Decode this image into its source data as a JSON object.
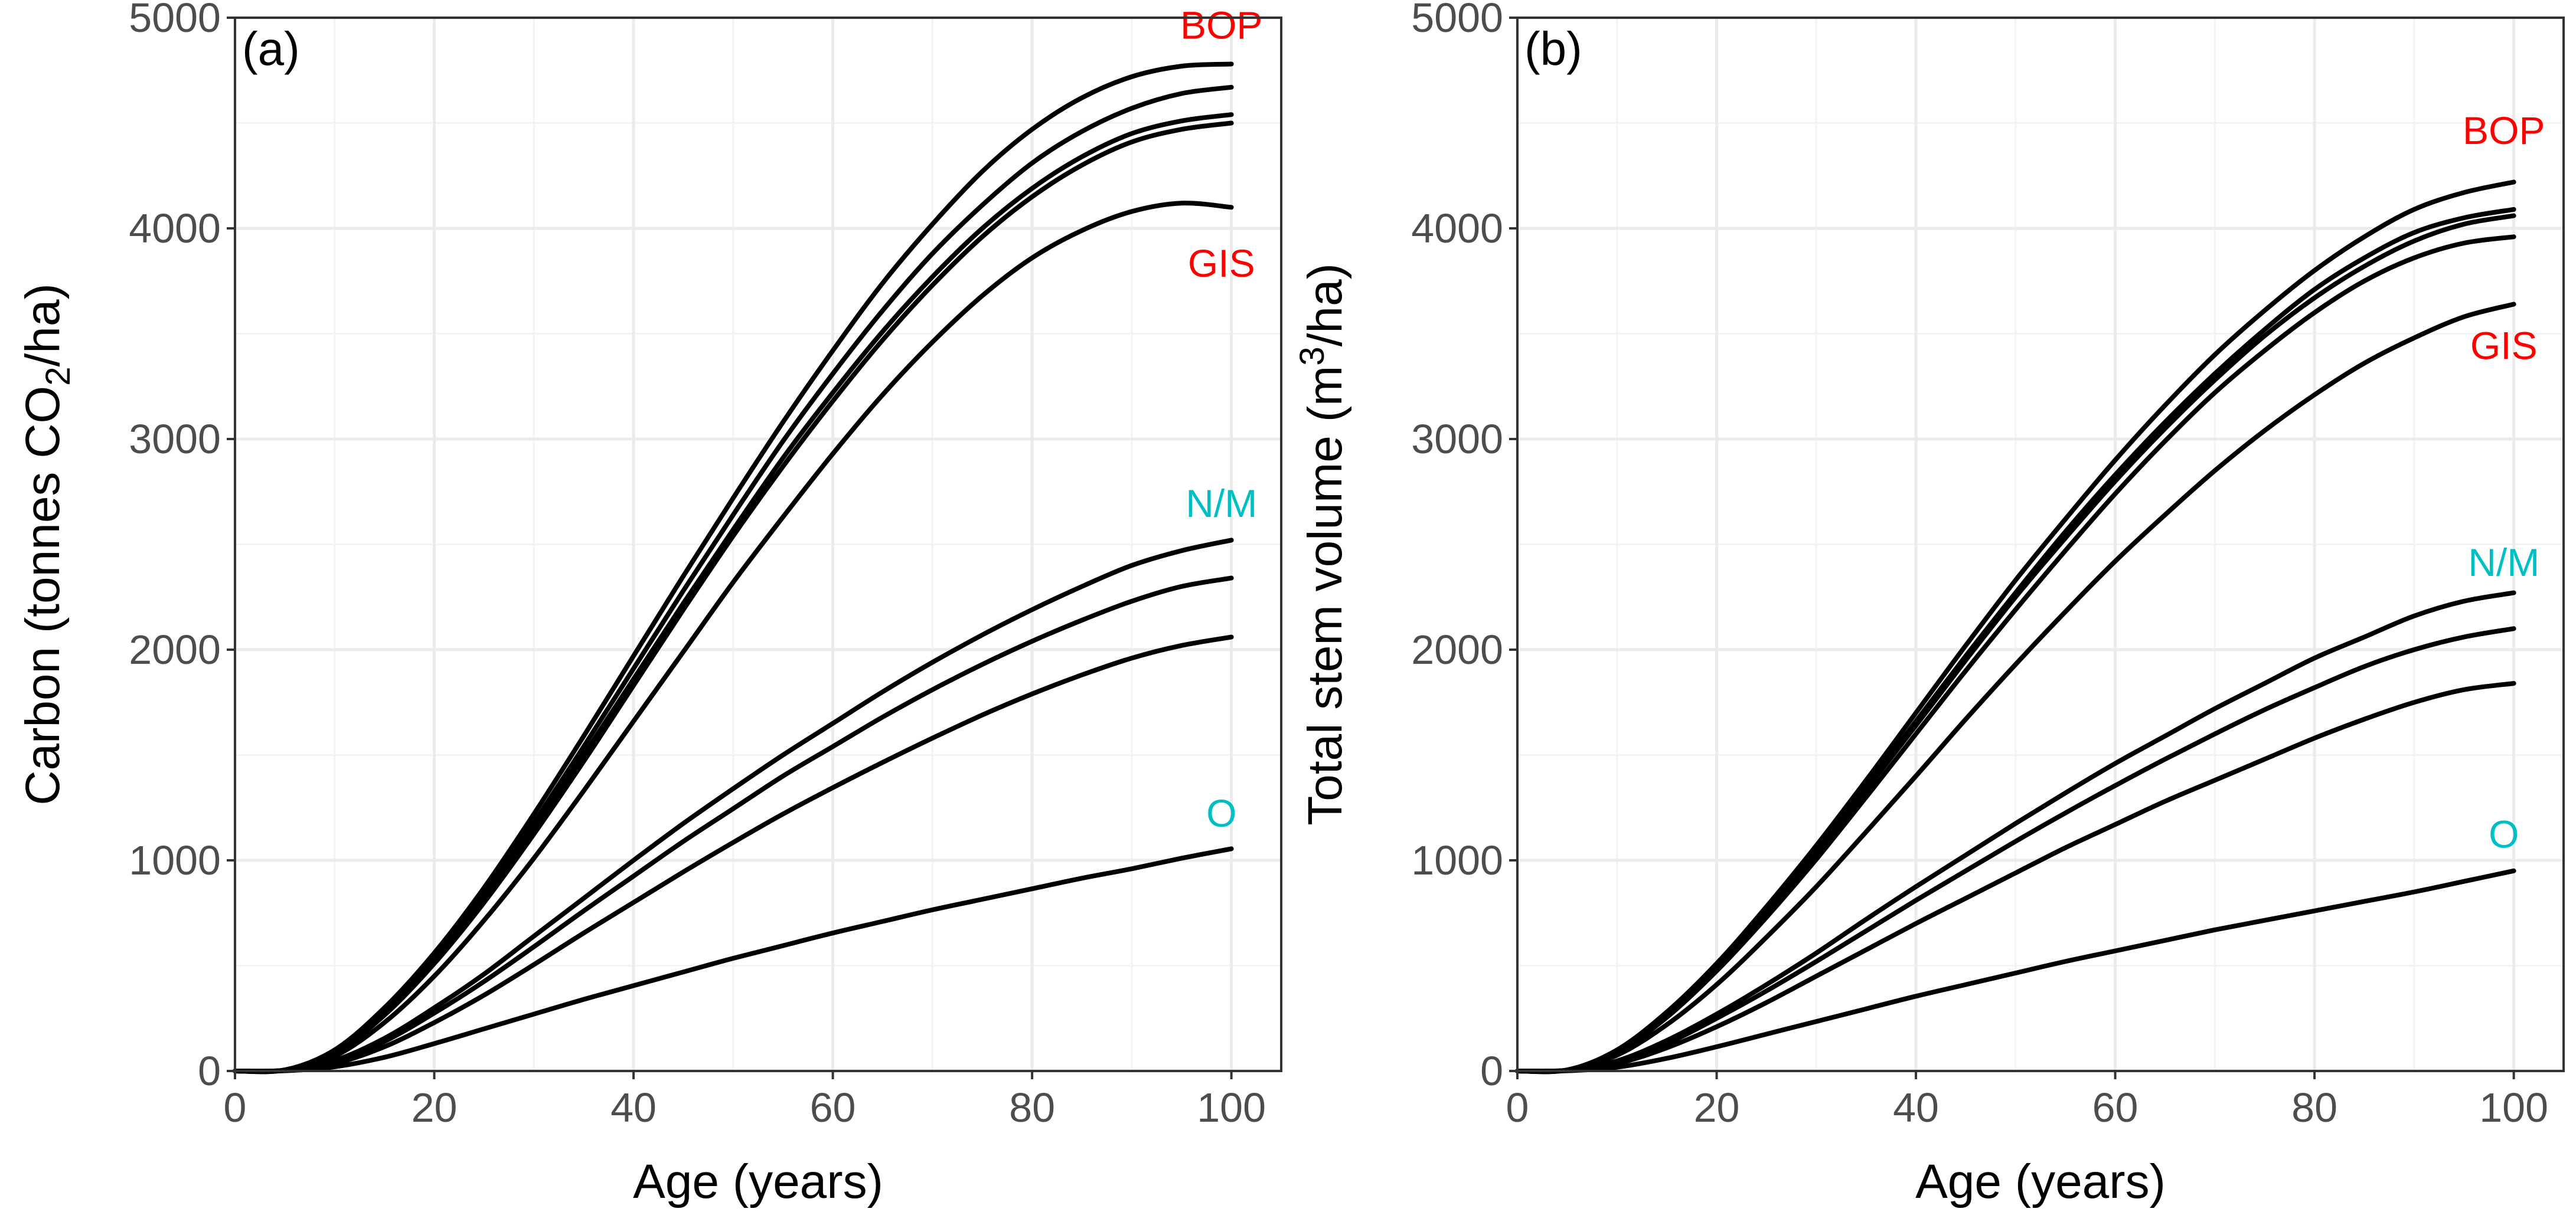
{
  "chart_data": [
    {
      "type": "line",
      "panel_tag": "(a)",
      "title": "",
      "xlabel": "Age (years)",
      "ylabel": {
        "pre": "Carbon (tonnes CO",
        "sub": "2",
        "post": "/ha)"
      },
      "xlim": [
        0,
        105
      ],
      "ylim": [
        0,
        5000
      ],
      "x_ticks": [
        0,
        20,
        40,
        60,
        80,
        100
      ],
      "y_ticks": [
        0,
        1000,
        2000,
        3000,
        4000,
        5000
      ],
      "x_tick_labels": [
        "0",
        "20",
        "40",
        "60",
        "80",
        "100"
      ],
      "y_tick_labels": [
        "0",
        "1000",
        "2000",
        "3000",
        "4000",
        "5000"
      ],
      "grid": true,
      "x": [
        0,
        5,
        10,
        15,
        20,
        25,
        30,
        35,
        40,
        45,
        50,
        55,
        60,
        65,
        70,
        75,
        80,
        85,
        90,
        95,
        100
      ],
      "series": [
        {
          "name": "curve-1",
          "values": [
            0,
            5,
            100,
            300,
            560,
            870,
            1220,
            1590,
            1970,
            2350,
            2720,
            3080,
            3420,
            3740,
            4020,
            4270,
            4470,
            4620,
            4720,
            4770,
            4780
          ]
        },
        {
          "name": "curve-2",
          "values": [
            0,
            5,
            95,
            285,
            540,
            840,
            1180,
            1540,
            1910,
            2280,
            2640,
            2990,
            3310,
            3610,
            3880,
            4110,
            4310,
            4460,
            4570,
            4640,
            4670
          ]
        },
        {
          "name": "curve-3",
          "values": [
            0,
            5,
            90,
            275,
            525,
            820,
            1150,
            1500,
            1860,
            2220,
            2570,
            2910,
            3220,
            3510,
            3770,
            4000,
            4190,
            4340,
            4450,
            4510,
            4540
          ]
        },
        {
          "name": "curve-4",
          "values": [
            0,
            5,
            85,
            265,
            510,
            800,
            1125,
            1470,
            1830,
            2190,
            2540,
            2870,
            3180,
            3470,
            3730,
            3960,
            4150,
            4300,
            4410,
            4470,
            4500
          ]
        },
        {
          "name": "curve-5",
          "values": [
            0,
            4,
            70,
            230,
            450,
            715,
            1010,
            1330,
            1660,
            1990,
            2320,
            2630,
            2930,
            3210,
            3460,
            3680,
            3860,
            3990,
            4080,
            4120,
            4100
          ]
        },
        {
          "name": "curve-6",
          "values": [
            0,
            3,
            50,
            155,
            300,
            460,
            640,
            820,
            1000,
            1175,
            1340,
            1500,
            1650,
            1800,
            1940,
            2070,
            2190,
            2300,
            2400,
            2470,
            2520
          ]
        },
        {
          "name": "curve-7",
          "values": [
            0,
            3,
            45,
            140,
            275,
            425,
            590,
            760,
            925,
            1090,
            1245,
            1400,
            1540,
            1680,
            1810,
            1930,
            2040,
            2140,
            2230,
            2300,
            2340
          ]
        },
        {
          "name": "curve-8",
          "values": [
            0,
            2,
            35,
            115,
            230,
            360,
            505,
            655,
            800,
            945,
            1085,
            1220,
            1345,
            1465,
            1580,
            1690,
            1790,
            1880,
            1960,
            2020,
            2060
          ]
        },
        {
          "name": "curve-9",
          "values": [
            0,
            1,
            20,
            65,
            130,
            200,
            270,
            340,
            405,
            470,
            535,
            595,
            655,
            710,
            765,
            815,
            865,
            915,
            960,
            1010,
            1055
          ]
        }
      ],
      "labels": [
        {
          "text": "BOP",
          "color": "#ff0000",
          "x": 99,
          "y": 4900
        },
        {
          "text": "GIS",
          "color": "#ff0000",
          "x": 99,
          "y": 3770
        },
        {
          "text": "N/M",
          "color": "#00bfc4",
          "x": 99,
          "y": 2630
        },
        {
          "text": "O",
          "color": "#00bfc4",
          "x": 99,
          "y": 1160
        }
      ]
    },
    {
      "type": "line",
      "panel_tag": "(b)",
      "title": "",
      "xlabel": "Age (years)",
      "ylabel": {
        "pre": "Total stem volume (m",
        "sup": "3",
        "post": "/ha)"
      },
      "xlim": [
        0,
        105
      ],
      "ylim": [
        0,
        5000
      ],
      "x_ticks": [
        0,
        20,
        40,
        60,
        80,
        100
      ],
      "y_ticks": [
        0,
        1000,
        2000,
        3000,
        4000,
        5000
      ],
      "x_tick_labels": [
        "0",
        "20",
        "40",
        "60",
        "80",
        "100"
      ],
      "y_tick_labels": [
        "0",
        "1000",
        "2000",
        "3000",
        "4000",
        "5000"
      ],
      "grid": true,
      "x": [
        0,
        5,
        10,
        15,
        20,
        25,
        30,
        35,
        40,
        45,
        50,
        55,
        60,
        65,
        70,
        75,
        80,
        85,
        90,
        95,
        100
      ],
      "series": [
        {
          "name": "curve-1",
          "values": [
            0,
            5,
            100,
            280,
            510,
            780,
            1070,
            1380,
            1700,
            2020,
            2330,
            2620,
            2900,
            3160,
            3400,
            3610,
            3800,
            3960,
            4090,
            4170,
            4220
          ]
        },
        {
          "name": "curve-2",
          "values": [
            0,
            5,
            95,
            270,
            495,
            760,
            1045,
            1350,
            1660,
            1970,
            2270,
            2560,
            2830,
            3080,
            3310,
            3520,
            3710,
            3860,
            3980,
            4050,
            4090
          ]
        },
        {
          "name": "curve-3",
          "values": [
            0,
            5,
            92,
            265,
            490,
            750,
            1030,
            1335,
            1640,
            1950,
            2250,
            2530,
            2800,
            3050,
            3280,
            3490,
            3670,
            3820,
            3940,
            4020,
            4060
          ]
        },
        {
          "name": "curve-4",
          "values": [
            0,
            5,
            88,
            255,
            475,
            730,
            1005,
            1300,
            1600,
            1900,
            2190,
            2470,
            2740,
            2990,
            3220,
            3420,
            3600,
            3750,
            3860,
            3930,
            3960
          ]
        },
        {
          "name": "curve-5",
          "values": [
            0,
            4,
            75,
            220,
            410,
            635,
            875,
            1135,
            1400,
            1670,
            1930,
            2180,
            2420,
            2640,
            2850,
            3040,
            3210,
            3360,
            3480,
            3580,
            3640
          ]
        },
        {
          "name": "curve-6",
          "values": [
            0,
            3,
            48,
            145,
            270,
            410,
            560,
            720,
            875,
            1025,
            1175,
            1320,
            1460,
            1590,
            1720,
            1840,
            1960,
            2060,
            2160,
            2230,
            2270
          ]
        },
        {
          "name": "curve-7",
          "values": [
            0,
            3,
            43,
            130,
            250,
            380,
            520,
            665,
            810,
            950,
            1090,
            1225,
            1355,
            1480,
            1600,
            1715,
            1820,
            1920,
            2000,
            2060,
            2100
          ]
        },
        {
          "name": "curve-8",
          "values": [
            0,
            2,
            35,
            110,
            210,
            325,
            450,
            575,
            700,
            820,
            940,
            1060,
            1170,
            1280,
            1380,
            1480,
            1580,
            1670,
            1750,
            1810,
            1840
          ]
        },
        {
          "name": "curve-9",
          "values": [
            0,
            1,
            18,
            60,
            115,
            175,
            235,
            295,
            355,
            410,
            465,
            520,
            570,
            620,
            670,
            715,
            760,
            805,
            850,
            900,
            950
          ]
        }
      ],
      "labels": [
        {
          "text": "BOP",
          "color": "#ff0000",
          "x": 99,
          "y": 4400
        },
        {
          "text": "GIS",
          "color": "#ff0000",
          "x": 99,
          "y": 3380
        },
        {
          "text": "N/M",
          "color": "#00bfc4",
          "x": 99,
          "y": 2350
        },
        {
          "text": "O",
          "color": "#00bfc4",
          "x": 99,
          "y": 1060
        }
      ]
    }
  ]
}
